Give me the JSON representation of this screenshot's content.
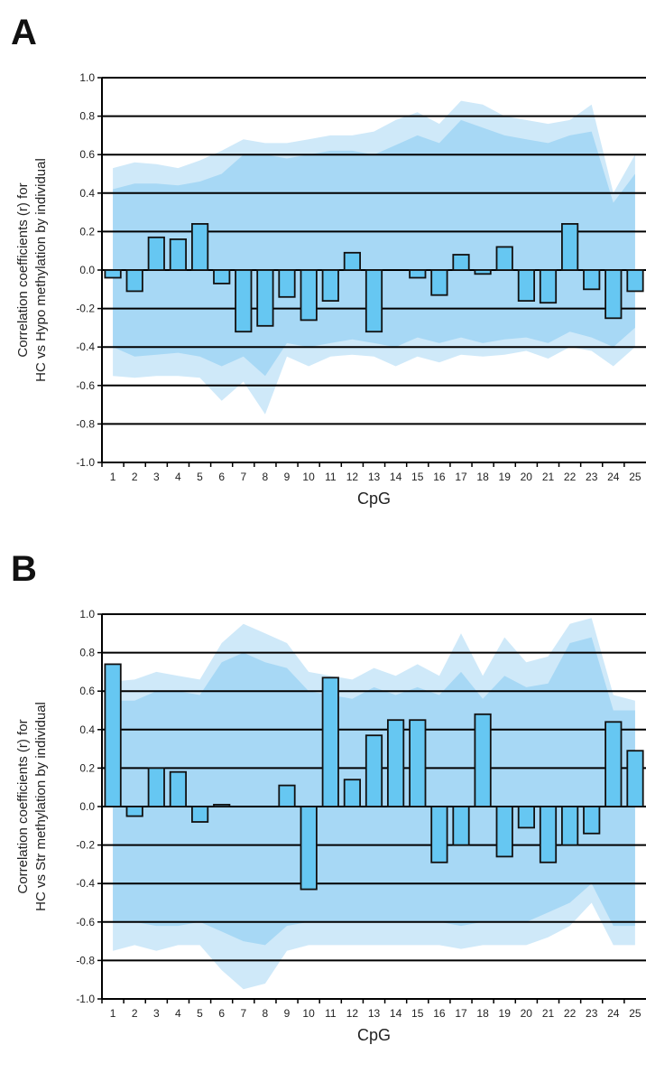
{
  "colors": {
    "outer_band": "#cfe9f9",
    "inner_band": "#a7d8f5",
    "bar_fill": "#66c7f2",
    "bar_stroke": "#111111",
    "grid": "#000000"
  },
  "chart_data": [
    {
      "type": "bar",
      "panel_label": "A",
      "xlabel": "CpG",
      "ylabel_lines": [
        "Correlation coefficients (r) for",
        "HC vs Hypo methylation by individual"
      ],
      "ylim": [
        -1.0,
        1.0
      ],
      "yticks": [
        "-1.0",
        "-0.8",
        "-0.6",
        "-0.4",
        "-0.2",
        "0.0",
        "0.2",
        "0.4",
        "0.6",
        "0.8",
        "1.0"
      ],
      "grid": true,
      "categories": [
        "1",
        "2",
        "3",
        "4",
        "5",
        "6",
        "7",
        "8",
        "9",
        "10",
        "11",
        "12",
        "13",
        "14",
        "15",
        "16",
        "17",
        "18",
        "19",
        "20",
        "21",
        "22",
        "23",
        "24",
        "25"
      ],
      "values": [
        -0.04,
        -0.11,
        0.17,
        0.16,
        0.24,
        -0.07,
        -0.32,
        -0.29,
        -0.14,
        -0.26,
        -0.16,
        0.09,
        -0.32,
        0.0,
        -0.04,
        -0.13,
        0.08,
        -0.02,
        0.12,
        -0.16,
        -0.17,
        0.24,
        -0.1,
        -0.25,
        -0.11
      ],
      "outer_band_upper": [
        0.53,
        0.56,
        0.55,
        0.53,
        0.57,
        0.62,
        0.68,
        0.66,
        0.66,
        0.68,
        0.7,
        0.7,
        0.72,
        0.78,
        0.82,
        0.76,
        0.88,
        0.86,
        0.8,
        0.78,
        0.76,
        0.78,
        0.86,
        0.4,
        0.6
      ],
      "inner_band_upper": [
        0.42,
        0.45,
        0.45,
        0.44,
        0.46,
        0.5,
        0.6,
        0.6,
        0.58,
        0.6,
        0.62,
        0.62,
        0.6,
        0.65,
        0.7,
        0.66,
        0.78,
        0.74,
        0.7,
        0.68,
        0.66,
        0.7,
        0.72,
        0.35,
        0.5
      ],
      "inner_band_lower": [
        -0.4,
        -0.45,
        -0.44,
        -0.43,
        -0.45,
        -0.5,
        -0.45,
        -0.55,
        -0.38,
        -0.4,
        -0.38,
        -0.36,
        -0.38,
        -0.4,
        -0.35,
        -0.38,
        -0.35,
        -0.38,
        -0.36,
        -0.35,
        -0.38,
        -0.32,
        -0.35,
        -0.4,
        -0.3
      ],
      "outer_band_lower": [
        -0.55,
        -0.56,
        -0.55,
        -0.55,
        -0.56,
        -0.68,
        -0.58,
        -0.75,
        -0.45,
        -0.5,
        -0.45,
        -0.44,
        -0.45,
        -0.5,
        -0.45,
        -0.48,
        -0.44,
        -0.45,
        -0.44,
        -0.42,
        -0.46,
        -0.4,
        -0.42,
        -0.5,
        -0.4
      ]
    },
    {
      "type": "bar",
      "panel_label": "B",
      "xlabel": "CpG",
      "ylabel_lines": [
        "Correlation coefficients (r) for",
        "HC vs Str methylation by individual"
      ],
      "ylim": [
        -1.0,
        1.0
      ],
      "yticks": [
        "-1.0",
        "-0.8",
        "-0.6",
        "-0.4",
        "-0.2",
        "0.0",
        "0.2",
        "0.4",
        "0.6",
        "0.8",
        "1.0"
      ],
      "grid": true,
      "categories": [
        "1",
        "2",
        "3",
        "4",
        "5",
        "6",
        "7",
        "8",
        "9",
        "10",
        "11",
        "12",
        "13",
        "14",
        "15",
        "16",
        "17",
        "18",
        "19",
        "20",
        "21",
        "22",
        "23",
        "24",
        "25"
      ],
      "values": [
        0.74,
        -0.05,
        0.2,
        0.18,
        -0.08,
        0.01,
        0.0,
        0.0,
        0.11,
        -0.43,
        0.67,
        0.14,
        0.37,
        0.45,
        0.45,
        -0.29,
        -0.2,
        0.48,
        -0.26,
        -0.11,
        -0.29,
        -0.2,
        -0.14,
        0.44,
        0.29
      ],
      "outer_band_upper": [
        0.65,
        0.66,
        0.7,
        0.68,
        0.66,
        0.85,
        0.95,
        0.9,
        0.85,
        0.7,
        0.68,
        0.66,
        0.72,
        0.68,
        0.74,
        0.68,
        0.9,
        0.68,
        0.88,
        0.75,
        0.78,
        0.95,
        0.98,
        0.58,
        0.55
      ],
      "inner_band_upper": [
        0.55,
        0.55,
        0.6,
        0.6,
        0.58,
        0.75,
        0.8,
        0.75,
        0.72,
        0.6,
        0.58,
        0.56,
        0.62,
        0.58,
        0.62,
        0.58,
        0.7,
        0.56,
        0.68,
        0.62,
        0.64,
        0.85,
        0.88,
        0.5,
        0.5
      ],
      "inner_band_lower": [
        -0.6,
        -0.6,
        -0.62,
        -0.62,
        -0.6,
        -0.65,
        -0.7,
        -0.72,
        -0.62,
        -0.6,
        -0.6,
        -0.6,
        -0.6,
        -0.6,
        -0.6,
        -0.6,
        -0.62,
        -0.6,
        -0.6,
        -0.6,
        -0.55,
        -0.5,
        -0.4,
        -0.62,
        -0.62
      ],
      "outer_band_lower": [
        -0.75,
        -0.72,
        -0.75,
        -0.72,
        -0.72,
        -0.85,
        -0.95,
        -0.92,
        -0.75,
        -0.72,
        -0.72,
        -0.72,
        -0.72,
        -0.72,
        -0.72,
        -0.72,
        -0.74,
        -0.72,
        -0.72,
        -0.72,
        -0.68,
        -0.62,
        -0.5,
        -0.72,
        -0.72
      ]
    }
  ]
}
